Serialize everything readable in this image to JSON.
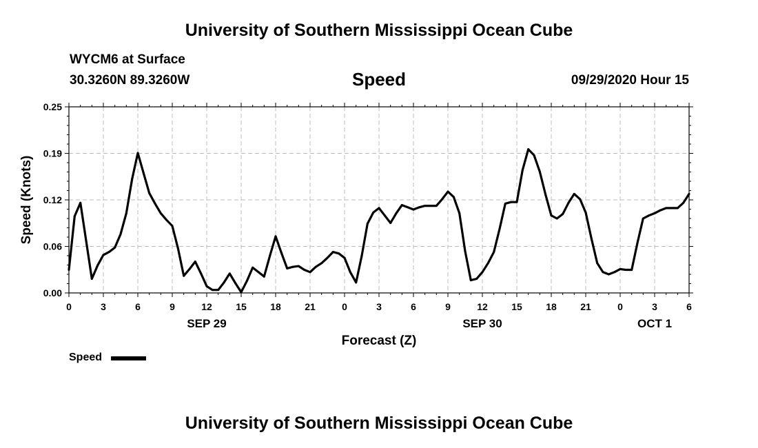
{
  "header": {
    "title_top": "University of Southern Mississippi Ocean Cube",
    "station": "WYCM6 at Surface",
    "coords": "30.3260N 89.3260W",
    "variable": "Speed",
    "datetime": "09/29/2020 Hour 15"
  },
  "footer": {
    "title_bottom": "University of Southern Mississippi Ocean Cube"
  },
  "legend": {
    "label": "Speed"
  },
  "chart_data": {
    "type": "line",
    "title": "Speed",
    "xlabel": "Forecast (Z)",
    "ylabel": "Speed (Knots)",
    "ylim": [
      0,
      0.25
    ],
    "y_ticks": [
      "0.00",
      "0.06",
      "0.12",
      "0.19",
      "0.25"
    ],
    "xlim": [
      0,
      54
    ],
    "x_tick_labels": [
      "0",
      "3",
      "6",
      "9",
      "12",
      "15",
      "18",
      "21",
      "0",
      "3",
      "6",
      "9",
      "12",
      "15",
      "18",
      "21",
      "0",
      "3",
      "6"
    ],
    "date_labels": [
      {
        "hour": 12,
        "label": "SEP 29"
      },
      {
        "hour": 36,
        "label": "SEP 30"
      },
      {
        "hour": 51,
        "label": "OCT 1"
      }
    ],
    "grid": true,
    "series": [
      {
        "name": "Speed",
        "color": "#000000",
        "x": [
          0,
          0.5,
          1,
          1.5,
          2,
          2.5,
          3,
          3.5,
          4,
          4.5,
          5,
          5.5,
          6,
          6.5,
          7,
          7.5,
          8,
          8.5,
          9,
          9.5,
          10,
          10.5,
          11,
          11.5,
          12,
          12.5,
          13,
          13.5,
          14,
          14.5,
          15,
          15.5,
          16,
          16.5,
          17,
          17.5,
          18,
          18.5,
          19,
          19.5,
          20,
          20.5,
          21,
          21.5,
          22,
          22.5,
          23,
          23.5,
          24,
          24.5,
          25,
          25.5,
          26,
          26.5,
          27,
          27.5,
          28,
          28.5,
          29,
          29.5,
          30,
          30.5,
          31,
          31.5,
          32,
          32.5,
          33,
          33.5,
          34,
          34.5,
          35,
          35.5,
          36,
          36.5,
          37,
          37.5,
          38,
          38.5,
          39,
          39.5,
          40,
          40.5,
          41,
          41.5,
          42,
          42.5,
          43,
          43.5,
          44,
          44.5,
          45,
          45.5,
          46,
          46.5,
          47,
          47.5,
          48,
          48.5,
          49,
          49.5,
          50,
          50.5,
          51,
          51.5,
          52,
          52.5,
          53,
          53.5,
          54
        ],
        "values": [
          0.031,
          0.103,
          0.121,
          0.07,
          0.019,
          0.037,
          0.051,
          0.055,
          0.061,
          0.079,
          0.107,
          0.153,
          0.188,
          0.161,
          0.134,
          0.12,
          0.107,
          0.098,
          0.09,
          0.06,
          0.023,
          0.032,
          0.042,
          0.026,
          0.009,
          0.004,
          0.004,
          0.014,
          0.026,
          0.013,
          0.001,
          0.016,
          0.034,
          0.028,
          0.022,
          0.05,
          0.076,
          0.054,
          0.033,
          0.035,
          0.036,
          0.031,
          0.028,
          0.035,
          0.04,
          0.047,
          0.055,
          0.053,
          0.047,
          0.028,
          0.014,
          0.05,
          0.093,
          0.108,
          0.114,
          0.104,
          0.094,
          0.107,
          0.118,
          0.115,
          0.112,
          0.115,
          0.117,
          0.117,
          0.117,
          0.126,
          0.136,
          0.129,
          0.107,
          0.056,
          0.017,
          0.019,
          0.028,
          0.04,
          0.055,
          0.086,
          0.12,
          0.122,
          0.122,
          0.165,
          0.193,
          0.185,
          0.163,
          0.132,
          0.104,
          0.1,
          0.106,
          0.121,
          0.133,
          0.126,
          0.108,
          0.073,
          0.04,
          0.028,
          0.025,
          0.028,
          0.032,
          0.031,
          0.031,
          0.067,
          0.1,
          0.104,
          0.107,
          0.111,
          0.114,
          0.114,
          0.114,
          0.121,
          0.133
        ]
      }
    ]
  }
}
